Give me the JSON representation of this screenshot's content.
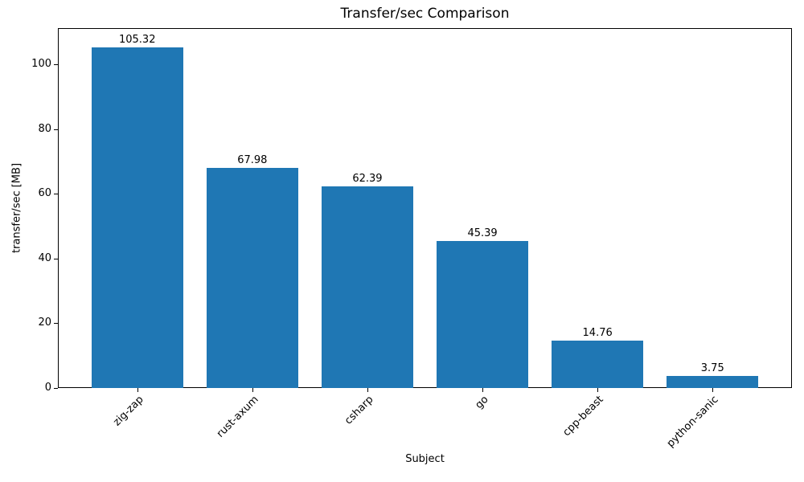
{
  "chart_data": {
    "type": "bar",
    "title": "Transfer/sec Comparison",
    "xlabel": "Subject",
    "ylabel": "transfer/sec [MB]",
    "categories": [
      "zig-zap",
      "rust-axum",
      "csharp",
      "go",
      "cpp-beast",
      "python-sanic"
    ],
    "values": [
      105.32,
      67.98,
      62.39,
      45.39,
      14.76,
      3.75
    ],
    "bar_labels": [
      "105.32",
      "67.98",
      "62.39",
      "45.39",
      "14.76",
      "3.75"
    ],
    "bar_color": "#1f77b4",
    "yticks": [
      0,
      20,
      40,
      60,
      80,
      100
    ],
    "ylim": [
      0,
      111.2
    ],
    "xlim": [
      -0.69,
      5.69
    ],
    "bar_width_fraction": 0.8,
    "xtick_rotation_deg": 45,
    "grid": false,
    "legend_position": "none"
  }
}
